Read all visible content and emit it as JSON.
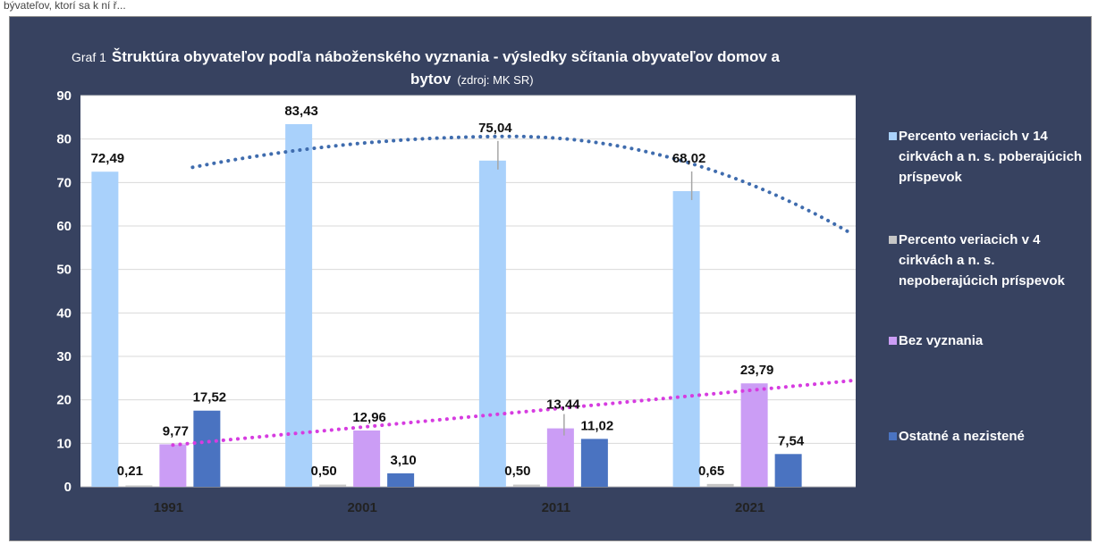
{
  "top_text": "bývateľov, ktorí sa k ní ř...",
  "chart_data": {
    "type": "bar",
    "title_prefix": "Graf 1",
    "title_line1": "Štruktúra obyvateľov podľa náboženského vyznania - výsledky sčítania obyvateľov domov a",
    "title_line2": "bytov",
    "source": "(zdroj: MK SR)",
    "categories": [
      "1991",
      "2001",
      "2011",
      "2021"
    ],
    "ylim": [
      0,
      90
    ],
    "yticks": [
      "0",
      "10",
      "20",
      "30",
      "40",
      "50",
      "60",
      "70",
      "80",
      "90"
    ],
    "grid": true,
    "legend_position": "right",
    "series": [
      {
        "name": "Percento veriacich v 14 cirkvách a n. s. poberajúcich príspevok",
        "color": "#a9d1fb",
        "values": [
          72.49,
          83.43,
          75.04,
          68.02
        ],
        "labels": [
          "72,49",
          "83,43",
          "75,04",
          "68,02"
        ]
      },
      {
        "name": "Percento veriacich v 4 cirkvách a n. s. nepoberajúcich príspevok",
        "color": "#c6c6c6",
        "values": [
          0.21,
          0.5,
          0.5,
          0.65
        ],
        "labels": [
          "0,21",
          "0,50",
          "0,50",
          "0,65"
        ]
      },
      {
        "name": "Bez vyznania",
        "color": "#cb9df5",
        "values": [
          9.77,
          12.96,
          13.44,
          23.79
        ],
        "labels": [
          "9,77",
          "12,96",
          "13,44",
          "23,79"
        ]
      },
      {
        "name": "Ostatné a nezistené",
        "color": "#4a73c1",
        "values": [
          17.52,
          3.1,
          11.02,
          7.54
        ],
        "labels": [
          "17,52",
          "3,10",
          "11,02",
          "7,54"
        ]
      }
    ],
    "trendlines": [
      {
        "of_series": "Percento veriacich v 14 cirkvách a n. s. poberajúcich príspevok",
        "kind": "polynomial",
        "color": "#3f6cae",
        "start_value": 73.5,
        "peak_value": 80.6,
        "end_value": 58.3
      },
      {
        "of_series": "Bez vyznania",
        "kind": "linear",
        "color": "#d63ce0",
        "start_value": 9.6,
        "end_value": 24.5
      }
    ]
  }
}
